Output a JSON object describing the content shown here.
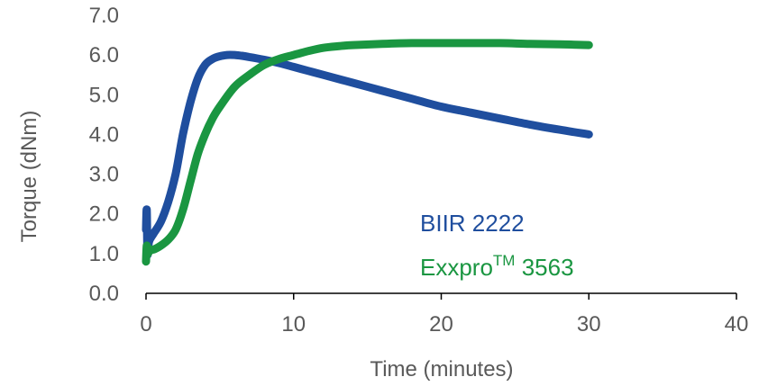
{
  "chart_data": {
    "type": "line",
    "xlabel": "Time (minutes)",
    "ylabel": "Torque (dNm)",
    "xlim": [
      0,
      40
    ],
    "ylim": [
      0,
      7
    ],
    "x_ticks": [
      "0",
      "10",
      "20",
      "30",
      "40"
    ],
    "y_ticks": [
      "0.0",
      "1.0",
      "2.0",
      "3.0",
      "4.0",
      "5.0",
      "6.0",
      "7.0"
    ],
    "grid": false,
    "series": [
      {
        "name": "BIIR 2222",
        "color": "#1f4e9e",
        "x": [
          0,
          0.05,
          0.1,
          0.2,
          0.5,
          1,
          1.5,
          2,
          2.5,
          3,
          3.5,
          4,
          4.5,
          5,
          5.5,
          6,
          6.5,
          7,
          8,
          9,
          10,
          11,
          12,
          14,
          16,
          18,
          20,
          22,
          24,
          26,
          28,
          30
        ],
        "y": [
          1.6,
          2.1,
          1.0,
          1.3,
          1.5,
          1.8,
          2.3,
          3.0,
          4.0,
          4.8,
          5.4,
          5.75,
          5.9,
          5.97,
          6.0,
          6.0,
          5.98,
          5.95,
          5.88,
          5.8,
          5.7,
          5.6,
          5.5,
          5.3,
          5.1,
          4.9,
          4.7,
          4.55,
          4.4,
          4.25,
          4.12,
          4.0
        ]
      },
      {
        "name": "Exxpro",
        "name_sup": "TM",
        "name_suffix": " 3563",
        "color": "#1a9641",
        "x": [
          0,
          0.05,
          0.1,
          0.3,
          0.5,
          1,
          1.5,
          2,
          2.5,
          3,
          3.5,
          4,
          4.5,
          5,
          6,
          7,
          8,
          9,
          10,
          11,
          12,
          13,
          14,
          16,
          18,
          20,
          22,
          24,
          26,
          28,
          30
        ],
        "y": [
          0.8,
          1.2,
          1.0,
          1.1,
          1.1,
          1.2,
          1.35,
          1.6,
          2.1,
          2.8,
          3.5,
          4.0,
          4.4,
          4.7,
          5.2,
          5.5,
          5.75,
          5.9,
          6.0,
          6.1,
          6.18,
          6.22,
          6.25,
          6.28,
          6.3,
          6.3,
          6.3,
          6.3,
          6.28,
          6.27,
          6.25
        ]
      }
    ]
  }
}
